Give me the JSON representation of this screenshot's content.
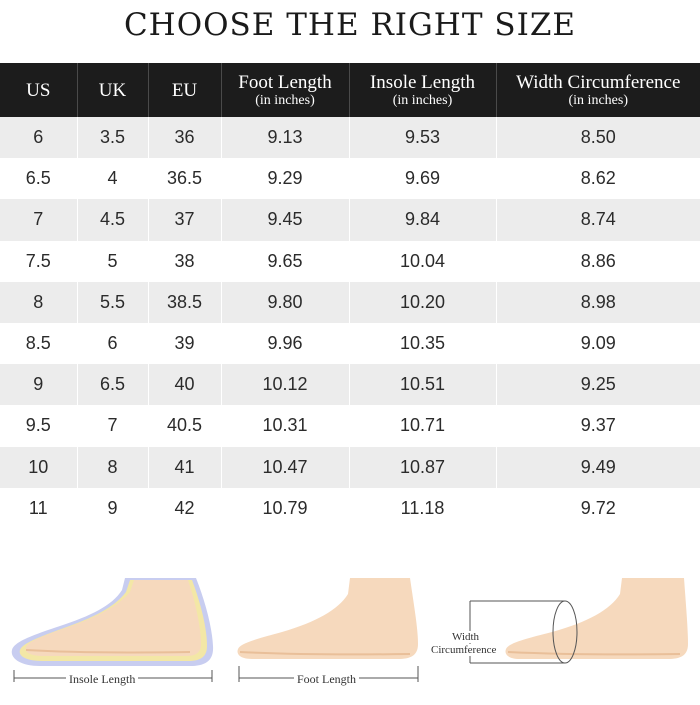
{
  "title": "CHOOSE THE RIGHT SIZE",
  "table": {
    "headers": [
      {
        "main": "US",
        "sub": ""
      },
      {
        "main": "UK",
        "sub": ""
      },
      {
        "main": "EU",
        "sub": ""
      },
      {
        "main": "Foot Length",
        "sub": "(in inches)"
      },
      {
        "main": "Insole Length",
        "sub": "(in inches)"
      },
      {
        "main": "Width Circumference",
        "sub": "(in inches)"
      }
    ],
    "rows": [
      [
        "6",
        "3.5",
        "36",
        "9.13",
        "9.53",
        "8.50"
      ],
      [
        "6.5",
        "4",
        "36.5",
        "9.29",
        "9.69",
        "8.62"
      ],
      [
        "7",
        "4.5",
        "37",
        "9.45",
        "9.84",
        "8.74"
      ],
      [
        "7.5",
        "5",
        "38",
        "9.65",
        "10.04",
        "8.86"
      ],
      [
        "8",
        "5.5",
        "38.5",
        "9.80",
        "10.20",
        "8.98"
      ],
      [
        "8.5",
        "6",
        "39",
        "9.96",
        "10.35",
        "9.09"
      ],
      [
        "9",
        "6.5",
        "40",
        "10.12",
        "10.51",
        "9.25"
      ],
      [
        "9.5",
        "7",
        "40.5",
        "10.31",
        "10.71",
        "9.37"
      ],
      [
        "10",
        "8",
        "41",
        "10.47",
        "10.87",
        "9.49"
      ],
      [
        "11",
        "9",
        "42",
        "10.79",
        "11.18",
        "9.72"
      ]
    ]
  },
  "illustrations": {
    "insole_caption": "Insole Length",
    "foot_caption": "Foot Length",
    "width_caption_line1": "Width",
    "width_caption_line2": "Circumference"
  },
  "colors": {
    "header_bg": "#1c1c1c",
    "row_alt_bg": "#ececec",
    "skin": "#f6d9bd",
    "skin_shadow": "#e9bf99",
    "insole_outer": "#c8cdf0",
    "insole_edge": "#f3e7a6"
  }
}
